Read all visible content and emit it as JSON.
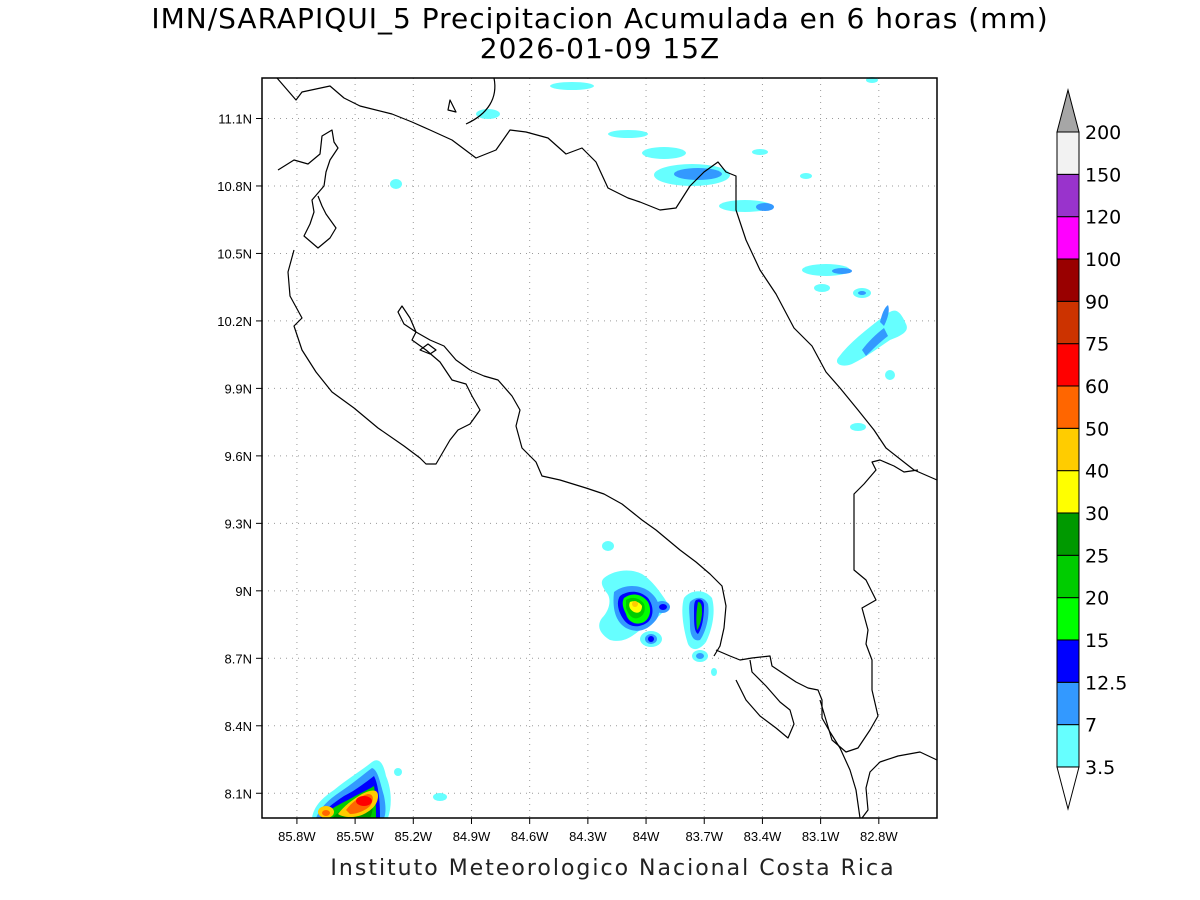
{
  "title": "IMN/SARAPIQUI_5 Precipitacion Acumulada en 6 horas (mm)",
  "subtitle": "2026-01-09 15Z",
  "footer": "Instituto Meteorologico Nacional Costa Rica",
  "map": {
    "lon_range": [
      -85.98,
      -82.5
    ],
    "lat_range": [
      7.99,
      11.28
    ],
    "grid": true,
    "x_tick_values": [
      -85.8,
      -85.5,
      -85.2,
      -84.9,
      -84.6,
      -84.3,
      -84.0,
      -83.7,
      -83.4,
      -83.1,
      -82.8
    ],
    "x_tick_labels": [
      "85.8W",
      "85.5W",
      "85.2W",
      "84.9W",
      "84.6W",
      "84.3W",
      "84W",
      "83.7W",
      "83.4W",
      "83.1W",
      "82.8W"
    ],
    "y_tick_values": [
      8.1,
      8.4,
      8.7,
      9.0,
      9.3,
      9.6,
      9.9,
      10.2,
      10.5,
      10.8,
      11.1
    ],
    "y_tick_labels": [
      "8.1N",
      "8.4N",
      "8.7N",
      "9N",
      "9.3N",
      "9.6N",
      "9.9N",
      "10.2N",
      "10.5N",
      "10.8N",
      "11.1N"
    ]
  },
  "colorbar": {
    "labels": [
      "3.5",
      "7",
      "12.5",
      "15",
      "20",
      "25",
      "30",
      "40",
      "50",
      "60",
      "75",
      "90",
      "100",
      "120",
      "150",
      "200"
    ],
    "colors": [
      "#66ffff",
      "#3399ff",
      "#0000ff",
      "#00ff00",
      "#00cc00",
      "#009900",
      "#ffff00",
      "#ffcc00",
      "#ff6600",
      "#ff0000",
      "#cc3300",
      "#990000",
      "#ff00ff",
      "#9933cc",
      "#f2f2f2"
    ],
    "below_color": "#ffffff",
    "above_color": "#a6a6a6"
  }
}
